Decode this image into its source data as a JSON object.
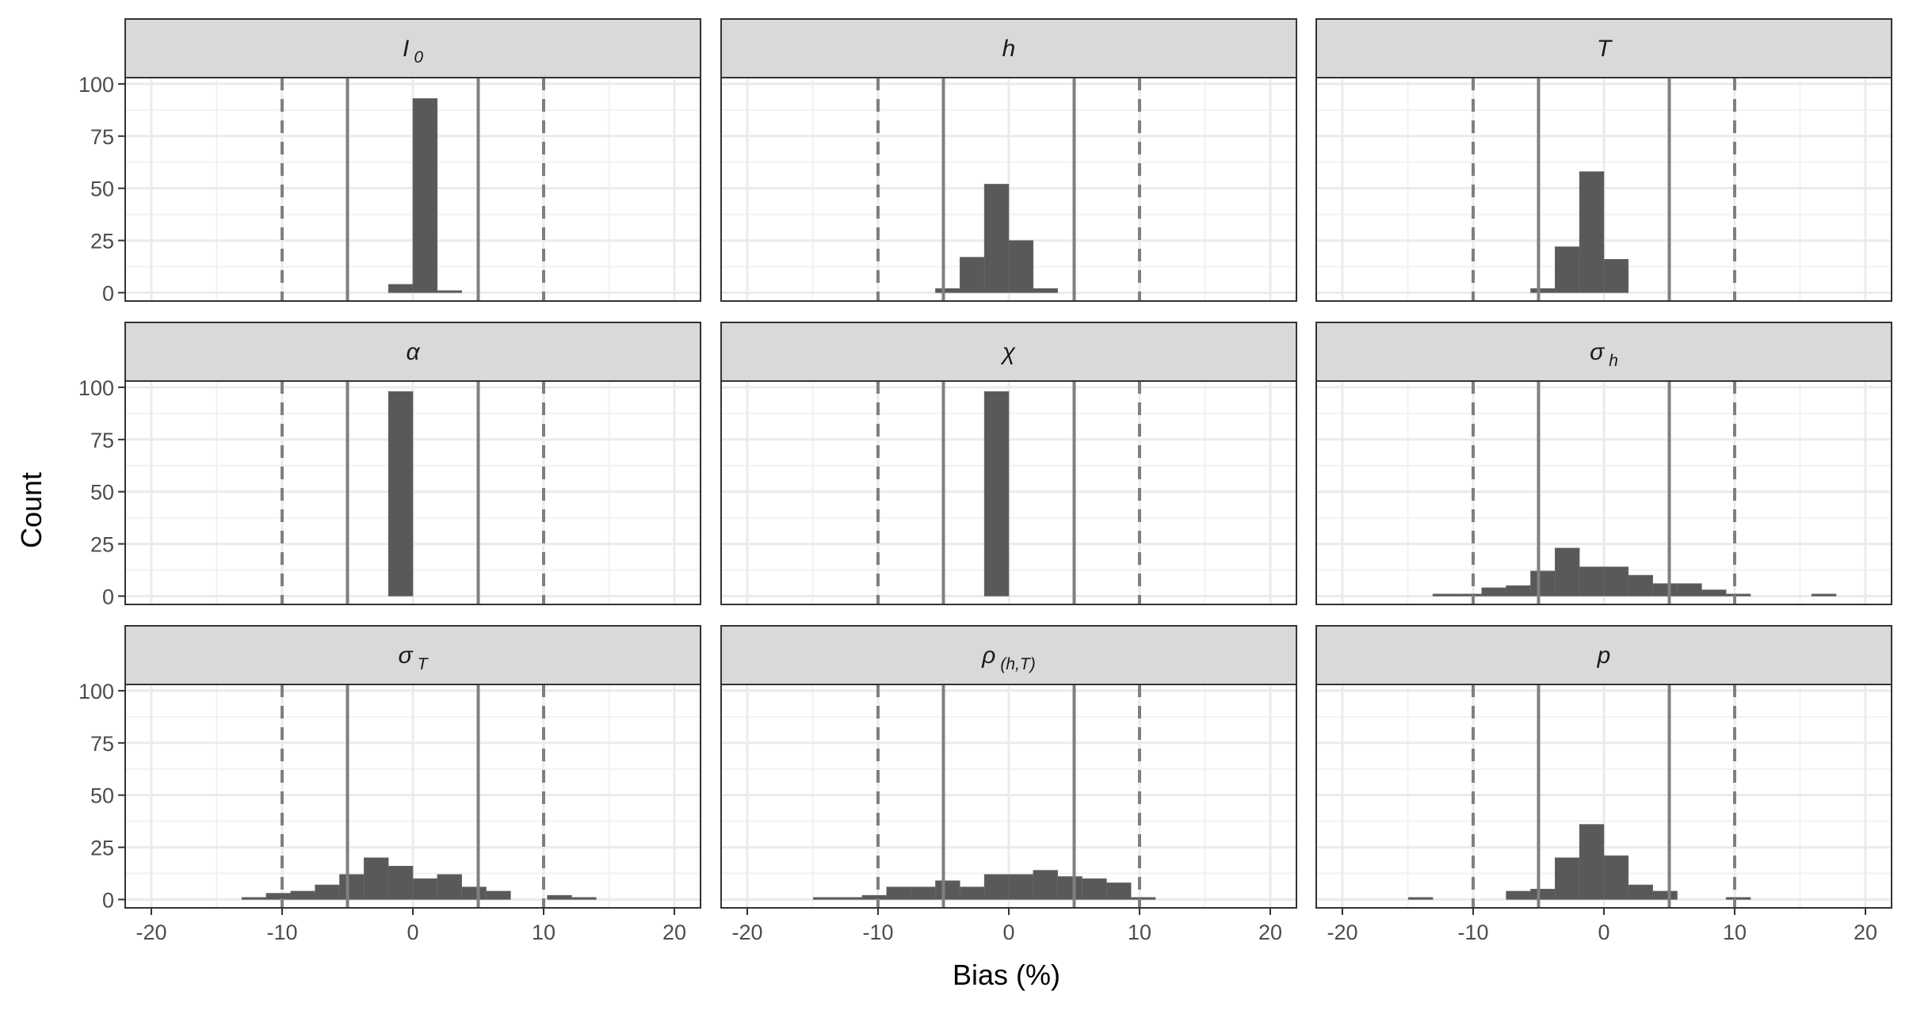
{
  "chart_data": {
    "type": "bar",
    "subtype": "faceted histogram",
    "xlabel": "Bias (%)",
    "ylabel": "Count",
    "xlim": [
      -22,
      22
    ],
    "ylim": [
      -4,
      103
    ],
    "x_ticks": [
      -20,
      -10,
      0,
      10,
      20
    ],
    "x_tick_labels": [
      "-20",
      "-10",
      "0",
      "10",
      "20"
    ],
    "y_ticks": [
      0,
      25,
      50,
      75,
      100
    ],
    "y_tick_labels": [
      "0",
      "25",
      "50",
      "75",
      "100"
    ],
    "x_minor_gridlines": [
      -15,
      -5,
      5,
      15
    ],
    "y_minor_gridlines": [
      12.5,
      37.5,
      62.5,
      87.5
    ],
    "grid": true,
    "facet_layout": "3x3",
    "bin_width": 1.87,
    "reference_lines": [
      {
        "x": -5,
        "style": "solid"
      },
      {
        "x": 5,
        "style": "solid"
      },
      {
        "x": -10,
        "style": "dashed"
      },
      {
        "x": 10,
        "style": "dashed"
      }
    ],
    "bar_color": "#595959",
    "strip_color": "#d9d9d9",
    "facets": [
      {
        "name": "I",
        "subscript": "0",
        "bins": [
          {
            "x": -0.934,
            "count": 4
          },
          {
            "x": 0.934,
            "count": 93
          },
          {
            "x": 2.804,
            "count": 1
          }
        ]
      },
      {
        "name": "h",
        "subscript": "",
        "bins": [
          {
            "x": -4.673,
            "count": 2
          },
          {
            "x": -2.804,
            "count": 17
          },
          {
            "x": -0.934,
            "count": 52
          },
          {
            "x": 0.934,
            "count": 25
          },
          {
            "x": 2.804,
            "count": 2
          }
        ]
      },
      {
        "name": "T",
        "subscript": "",
        "bins": [
          {
            "x": -4.673,
            "count": 2
          },
          {
            "x": -2.804,
            "count": 22
          },
          {
            "x": -0.934,
            "count": 58
          },
          {
            "x": 0.934,
            "count": 16
          }
        ]
      },
      {
        "name": "α",
        "subscript": "",
        "bins": [
          {
            "x": -0.934,
            "count": 98
          }
        ]
      },
      {
        "name": "χ",
        "subscript": "",
        "bins": [
          {
            "x": -0.934,
            "count": 98
          }
        ]
      },
      {
        "name": "σ",
        "subscript": "h",
        "bins": [
          {
            "x": -12.15,
            "count": 1
          },
          {
            "x": -10.28,
            "count": 1
          },
          {
            "x": -8.411,
            "count": 4
          },
          {
            "x": -6.542,
            "count": 5
          },
          {
            "x": -4.673,
            "count": 12
          },
          {
            "x": -2.804,
            "count": 23
          },
          {
            "x": -0.934,
            "count": 14
          },
          {
            "x": 0.934,
            "count": 14
          },
          {
            "x": 2.804,
            "count": 10
          },
          {
            "x": 4.673,
            "count": 6
          },
          {
            "x": 6.542,
            "count": 6
          },
          {
            "x": 8.411,
            "count": 3
          },
          {
            "x": 10.28,
            "count": 1
          },
          {
            "x": 16.822,
            "count": 1
          }
        ]
      },
      {
        "name": "σ",
        "subscript": "T",
        "bins": [
          {
            "x": -12.15,
            "count": 1
          },
          {
            "x": -10.28,
            "count": 3
          },
          {
            "x": -8.411,
            "count": 4
          },
          {
            "x": -6.542,
            "count": 7
          },
          {
            "x": -4.673,
            "count": 12
          },
          {
            "x": -2.804,
            "count": 20
          },
          {
            "x": -0.934,
            "count": 16
          },
          {
            "x": 0.934,
            "count": 10
          },
          {
            "x": 2.804,
            "count": 12
          },
          {
            "x": 4.673,
            "count": 6
          },
          {
            "x": 6.542,
            "count": 4
          },
          {
            "x": 11.215,
            "count": 2
          },
          {
            "x": 13.084,
            "count": 1
          }
        ]
      },
      {
        "name": "ρ",
        "subscript": "(h,T)",
        "bins": [
          {
            "x": -14.019,
            "count": 1
          },
          {
            "x": -12.15,
            "count": 1
          },
          {
            "x": -10.28,
            "count": 2
          },
          {
            "x": -8.411,
            "count": 6
          },
          {
            "x": -6.542,
            "count": 6
          },
          {
            "x": -4.673,
            "count": 9
          },
          {
            "x": -2.804,
            "count": 6
          },
          {
            "x": -0.934,
            "count": 12
          },
          {
            "x": 0.934,
            "count": 12
          },
          {
            "x": 2.804,
            "count": 14
          },
          {
            "x": 4.673,
            "count": 11
          },
          {
            "x": 6.542,
            "count": 10
          },
          {
            "x": 8.411,
            "count": 8
          },
          {
            "x": 10.28,
            "count": 1
          }
        ]
      },
      {
        "name": "p",
        "subscript": "",
        "bins": [
          {
            "x": -14.019,
            "count": 1
          },
          {
            "x": -6.542,
            "count": 4
          },
          {
            "x": -4.673,
            "count": 5
          },
          {
            "x": -2.804,
            "count": 20
          },
          {
            "x": -0.934,
            "count": 36
          },
          {
            "x": 0.934,
            "count": 21
          },
          {
            "x": 2.804,
            "count": 7
          },
          {
            "x": 4.673,
            "count": 4
          },
          {
            "x": 10.28,
            "count": 1
          }
        ]
      }
    ]
  }
}
